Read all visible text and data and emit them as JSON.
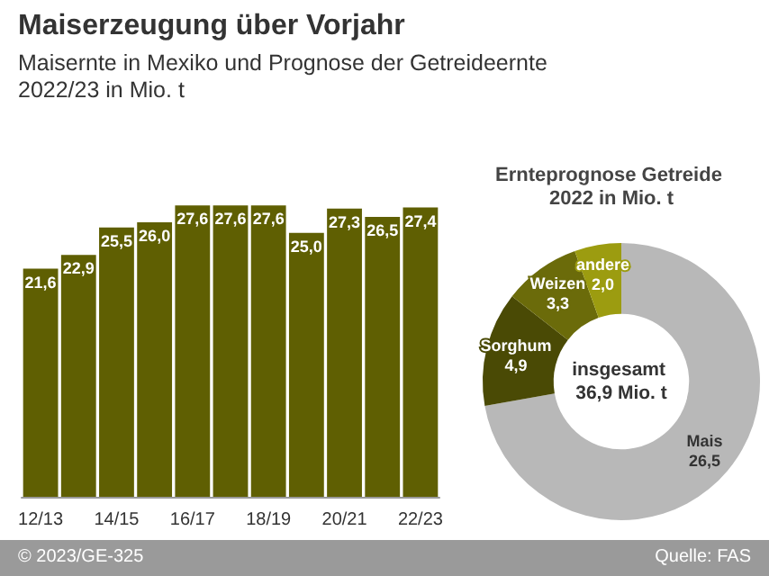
{
  "chart_data": [
    {
      "type": "bar",
      "title": "Maiserzeugung über Vorjahr",
      "subtitle": "Maisernte in Mexiko und Prognose der Getreideernte 2022/23 in Mio. t",
      "categories": [
        "12/13",
        null,
        "14/15",
        null,
        "16/17",
        null,
        "18/19",
        null,
        "20/21",
        null,
        "22/23"
      ],
      "values": [
        21.6,
        22.9,
        25.5,
        26.0,
        27.6,
        27.6,
        27.6,
        25.0,
        27.3,
        26.5,
        27.4
      ],
      "value_labels": [
        "21,6",
        "22,9",
        "25,5",
        "26,0",
        "27,6",
        "27,6",
        "27,6",
        "25,0",
        "27,3",
        "26,5",
        "27,4"
      ],
      "color": "#5f5f02",
      "annotations": [
        "© 2023/GE-325",
        "Quelle: FAS"
      ]
    },
    {
      "type": "donut",
      "title": "Ernteprognose Getreide 2022 in Mio. t",
      "categories": [
        "Mais",
        "Sorghum",
        "Weizen",
        "andere"
      ],
      "values": [
        26.5,
        4.9,
        3.3,
        2.0
      ],
      "value_labels": [
        "26,5",
        "4,9",
        "3,3",
        "2,0"
      ],
      "colors": [
        "#b8b8b8",
        "#4a4a05",
        "#6b6b0a",
        "#9c9c10"
      ],
      "annotations": [
        "insgesamt 36,9 Mio. t"
      ]
    }
  ]
}
